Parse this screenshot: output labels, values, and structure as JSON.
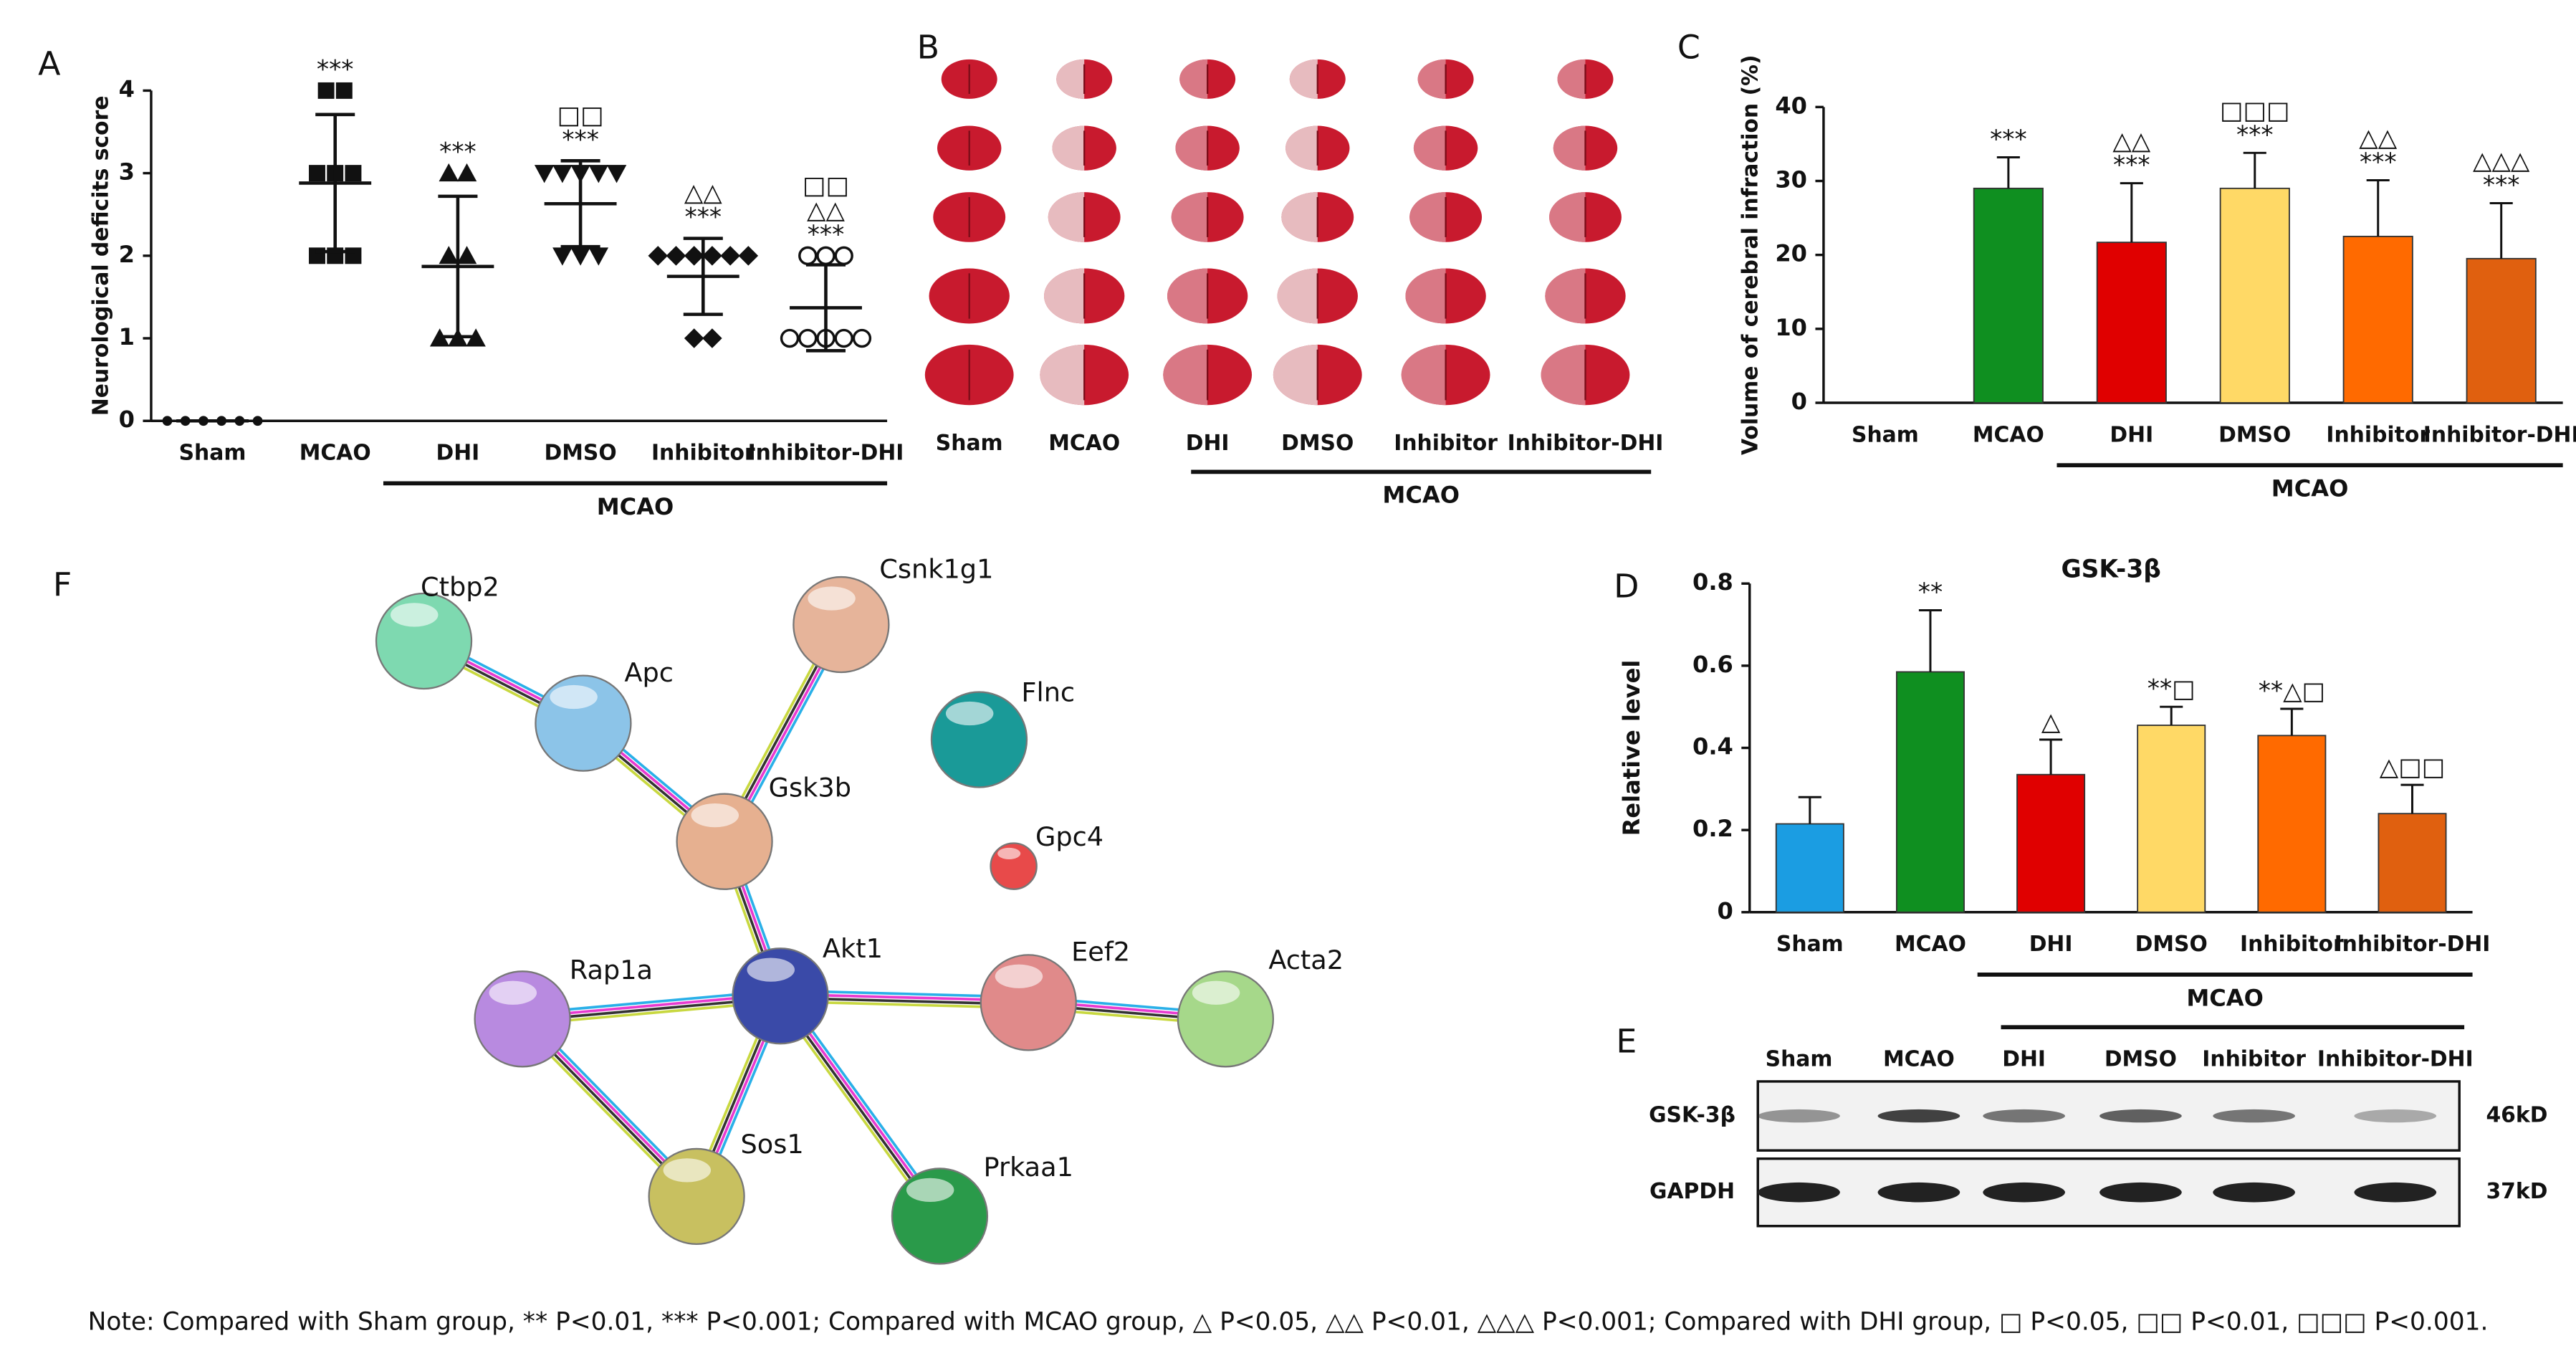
{
  "chart_data": [
    {
      "type": "dot",
      "label": "A",
      "ylabel": "Neurological deficits score",
      "categories": [
        "Sham",
        "MCAO",
        "DHI",
        "DMSO",
        "Inhibitor",
        "Inhibitor-DHI"
      ],
      "points": [
        [
          0,
          0,
          0,
          0,
          0,
          0
        ],
        [
          4,
          4,
          3,
          3,
          3,
          2,
          2,
          2
        ],
        [
          3,
          3,
          2,
          2,
          1,
          1,
          1
        ],
        [
          3,
          3,
          3,
          3,
          3,
          2,
          2,
          2
        ],
        [
          2,
          2,
          2,
          2,
          2,
          2,
          1,
          1
        ],
        [
          2,
          2,
          2,
          1,
          1,
          1,
          1,
          1
        ]
      ],
      "mean": [
        0,
        2.88,
        1.87,
        2.63,
        1.75,
        1.37
      ],
      "sd": [
        0,
        0.83,
        0.85,
        0.52,
        0.46,
        0.52
      ],
      "sig_labels": [
        [],
        [
          "***"
        ],
        [
          "***"
        ],
        [
          "□□",
          "***"
        ],
        [
          "△△",
          "***"
        ],
        [
          "□□",
          "△△",
          "***"
        ]
      ],
      "group_label": "MCAO",
      "ylim": [
        0,
        4
      ],
      "yticks": [
        0,
        1,
        2,
        3,
        4
      ]
    },
    {
      "type": "bar",
      "label": "C",
      "ylabel": "Volume of cerebral infraction (%)",
      "categories": [
        "Sham",
        "MCAO",
        "DHI",
        "DMSO",
        "Inhibitor",
        "Inhibitor-DHI"
      ],
      "values": [
        0,
        29,
        21.7,
        29,
        22.5,
        19.5
      ],
      "errors": [
        0,
        4.2,
        8,
        4.8,
        7.6,
        7.5
      ],
      "colors": [
        "#1b9de2",
        "#0f8f20",
        "#e00000",
        "#ffd966",
        "#ff6a00",
        "#e0600f"
      ],
      "sig_labels": [
        [],
        [
          "***"
        ],
        [
          "△△",
          "***"
        ],
        [
          "□□□",
          "***"
        ],
        [
          "△△",
          "***"
        ],
        [
          "△△△",
          "***"
        ]
      ],
      "group_label": "MCAO",
      "ylim": [
        0,
        40
      ],
      "yticks": [
        0,
        10,
        20,
        30,
        40
      ]
    },
    {
      "type": "bar",
      "label": "D",
      "title": "GSK-3β",
      "ylabel": "Relative level",
      "categories": [
        "Sham",
        "MCAO",
        "DHI",
        "DMSO",
        "Inhibitor",
        "Inhibitor-DHI"
      ],
      "values": [
        0.215,
        0.585,
        0.335,
        0.455,
        0.43,
        0.24
      ],
      "errors": [
        0.065,
        0.15,
        0.085,
        0.045,
        0.065,
        0.07
      ],
      "colors": [
        "#1b9de2",
        "#0f8f20",
        "#e00000",
        "#ffd966",
        "#ff6a00",
        "#e0600f"
      ],
      "sig_labels": [
        [],
        [
          "**"
        ],
        [
          "△"
        ],
        [
          "**□"
        ],
        [
          "**△□"
        ],
        [
          "△□□"
        ]
      ],
      "group_label": "MCAO",
      "ylim": [
        0,
        0.8
      ],
      "yticks": [
        0,
        0.2,
        0.4,
        0.6,
        0.8
      ]
    }
  ],
  "images": {
    "label": "B",
    "categories": [
      "Sham",
      "MCAO",
      "DHI",
      "DMSO",
      "Inhibitor",
      "Inhibitor-DHI"
    ],
    "group_label": "MCAO"
  },
  "blot": {
    "label": "E",
    "lanes": [
      "Sham",
      "MCAO",
      "DHI",
      "DMSO",
      "Inhibitor",
      "Inhibitor-DHI"
    ],
    "rows": [
      "GSK-3β",
      "GAPDH"
    ],
    "sizes": [
      "46kD",
      "37kD"
    ]
  },
  "network": {
    "label": "F",
    "nodes": [
      "Ctbp2",
      "Csnk1g1",
      "Apc",
      "Flnc",
      "Gsk3b",
      "Gpc4",
      "Rap1a",
      "Akt1",
      "Eef2",
      "Acta2",
      "Sos1",
      "Prkaa1"
    ]
  },
  "note": "Note: Compared with Sham group, ** P<0.01, *** P<0.001; Compared with MCAO group, △ P<0.05, △△ P<0.01, △△△ P<0.001; Compared with DHI group, □ P<0.05, □□ P<0.01, □□□ P<0.001."
}
